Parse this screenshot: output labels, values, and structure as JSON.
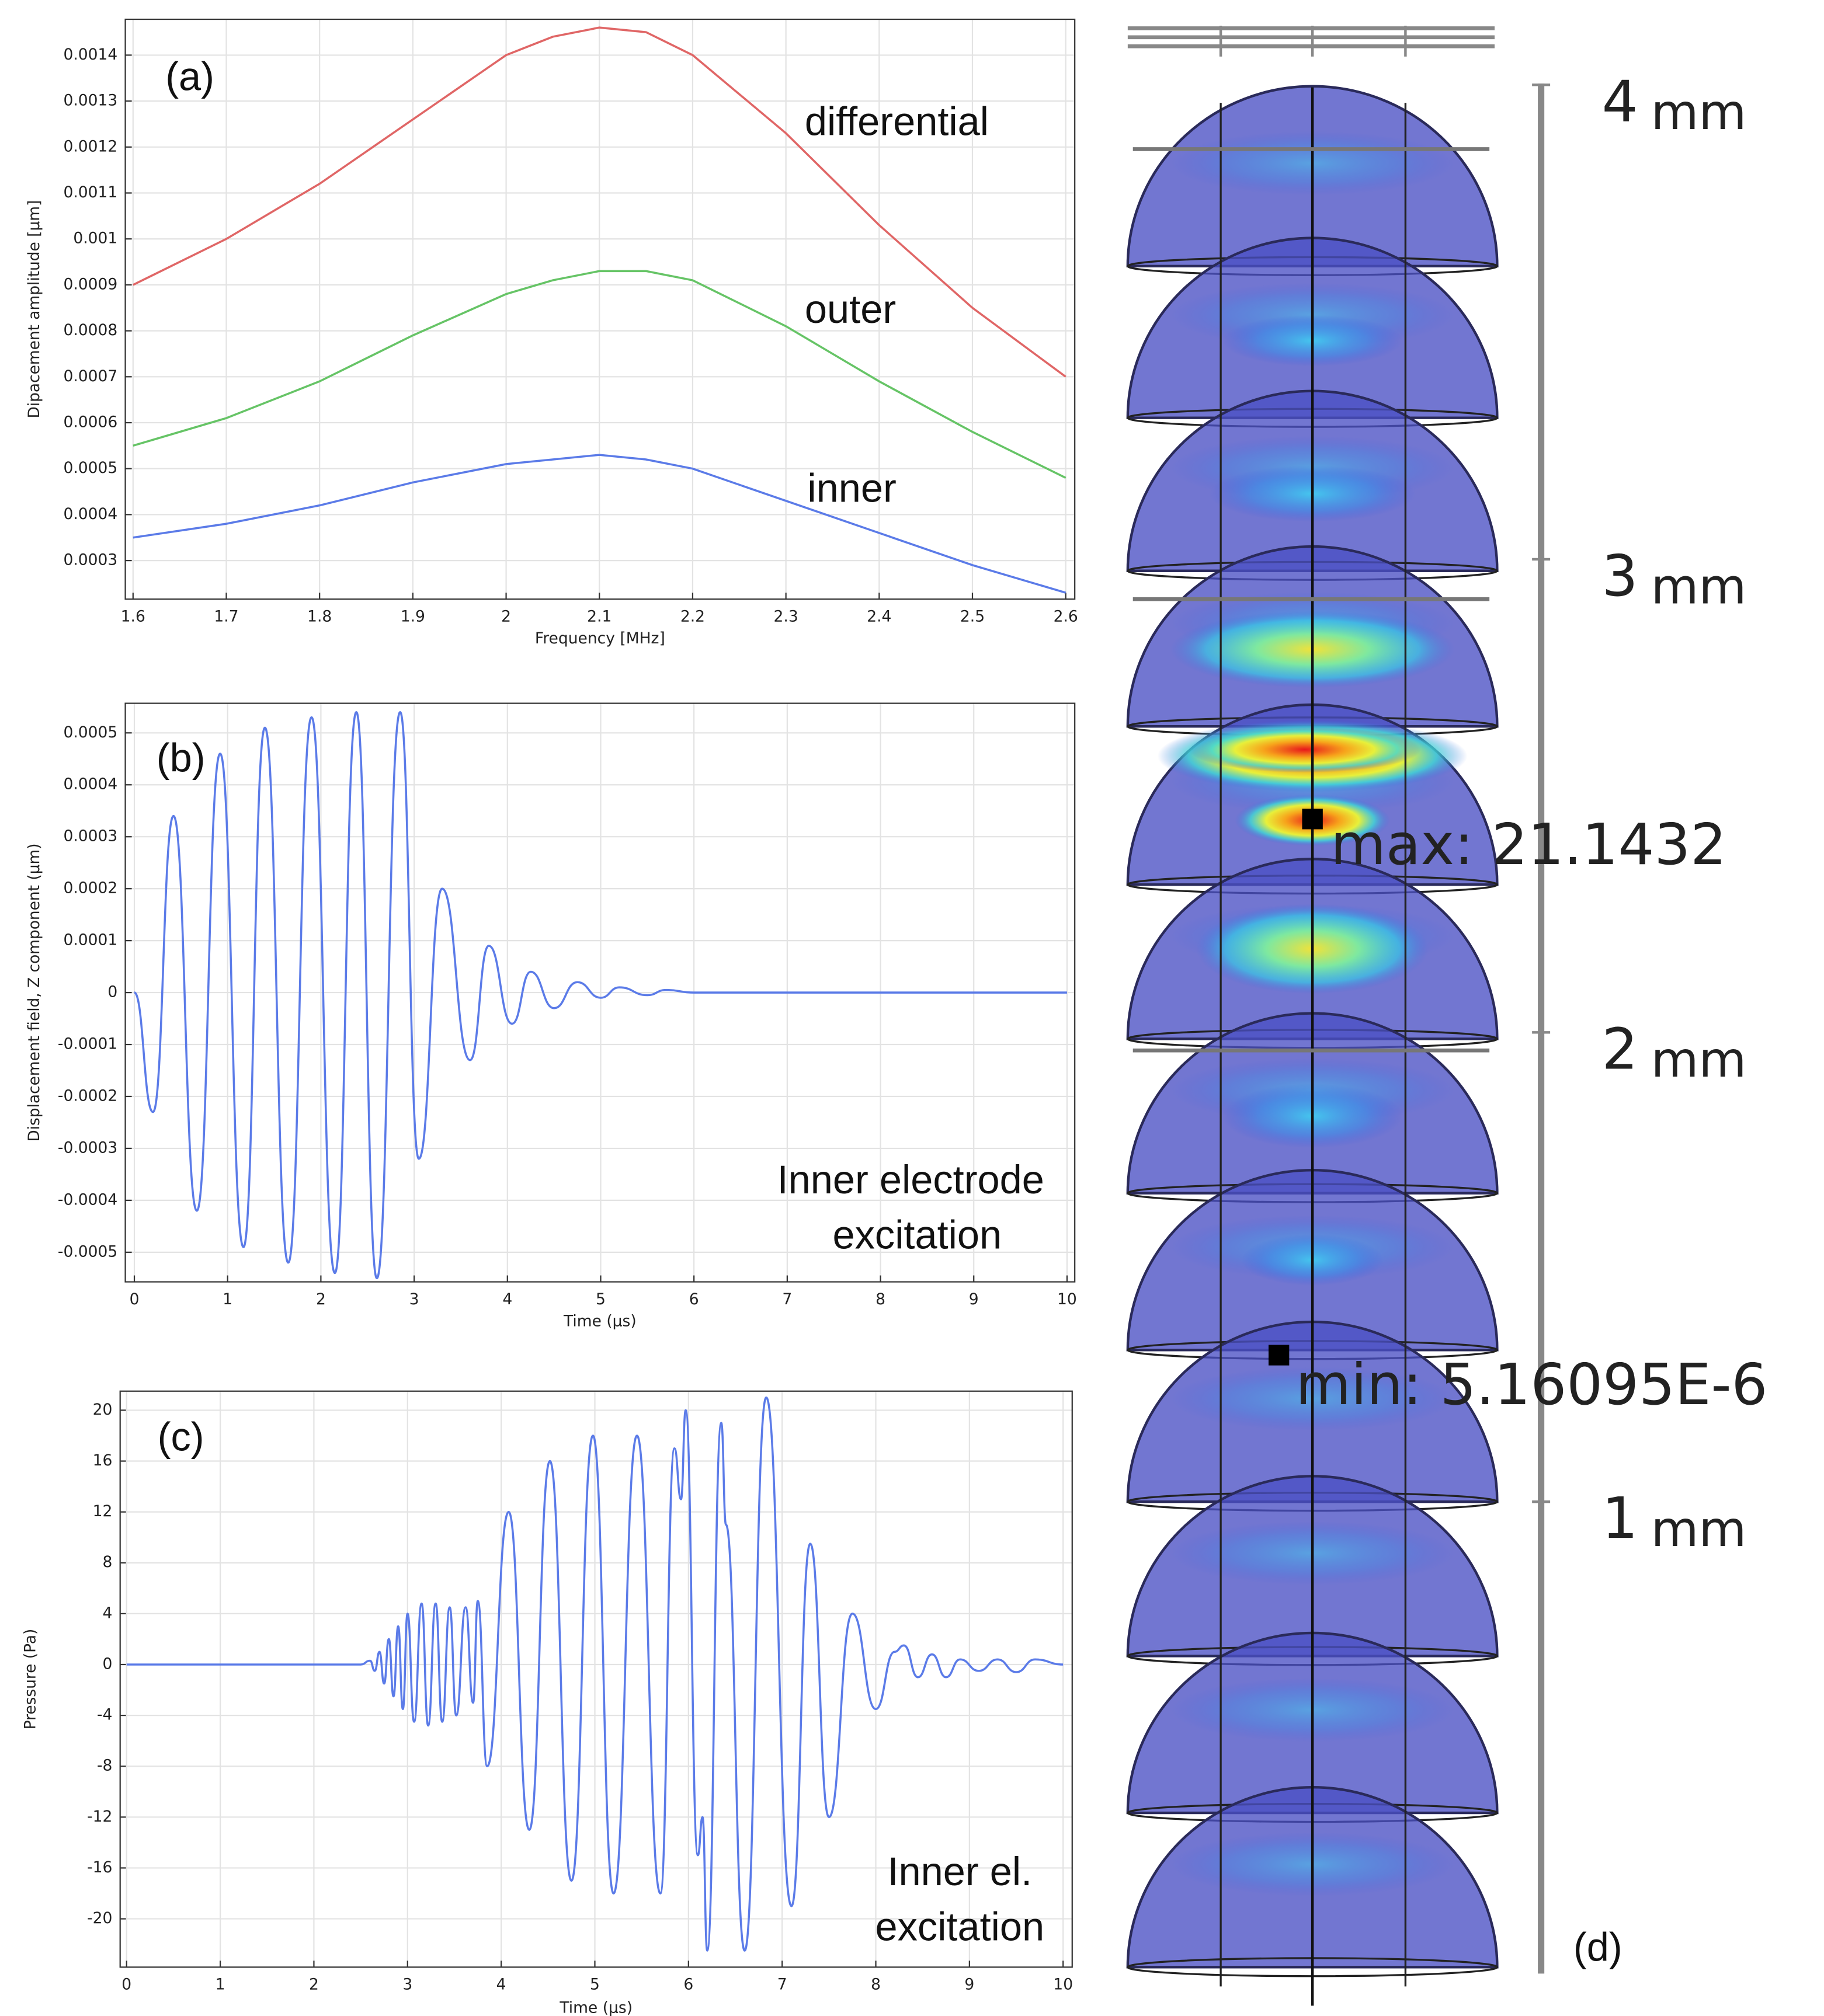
{
  "chart_data": [
    {
      "type": "line",
      "title": "(a)",
      "x_label": "Frequency [MHz]",
      "y_label": "Dipacement amplitude [µm]",
      "x": [
        1.6,
        1.7,
        1.8,
        1.9,
        2.0,
        2.05,
        2.1,
        2.15,
        2.2,
        2.3,
        2.4,
        2.5,
        2.6
      ],
      "series": [
        {
          "name": "differential",
          "color": "#e06666",
          "values": [
            0.0009,
            0.001,
            0.00112,
            0.00126,
            0.0014,
            0.00144,
            0.00146,
            0.00145,
            0.0014,
            0.00123,
            0.00103,
            0.00085,
            0.0007
          ]
        },
        {
          "name": "outer",
          "color": "#66c466",
          "values": [
            0.00055,
            0.00061,
            0.00069,
            0.00079,
            0.00088,
            0.00091,
            0.00093,
            0.00093,
            0.00091,
            0.00081,
            0.00069,
            0.00058,
            0.00048
          ]
        },
        {
          "name": "inner",
          "color": "#5b7be8",
          "values": [
            0.00035,
            0.00038,
            0.00042,
            0.00047,
            0.00051,
            0.00052,
            0.00053,
            0.00052,
            0.0005,
            0.00043,
            0.00036,
            0.00029,
            0.00023
          ]
        }
      ],
      "xlim": [
        1.5917,
        2.6097
      ],
      "xticks": [
        1.6,
        1.7,
        1.8,
        1.9,
        2,
        2.1,
        2.2,
        2.3,
        2.4,
        2.5,
        2.6
      ],
      "ylim": [
        0.000216,
        0.001478
      ],
      "yticks": [
        0.0003,
        0.0004,
        0.0005,
        0.0006,
        0.0007,
        0.0008,
        0.0009,
        0.001,
        0.0011,
        0.0012,
        0.0013,
        0.0014
      ],
      "grid": true
    },
    {
      "type": "line",
      "title": "(b)",
      "annotations": [
        "Inner electrode",
        "excitation"
      ],
      "x_label": "Time (µs)",
      "y_label": "Displacement field, Z component (µm)",
      "color": "#5b7be8",
      "x": [
        0,
        0.2,
        0.42,
        0.67,
        0.92,
        1.17,
        1.4,
        1.65,
        1.9,
        2.15,
        2.38,
        2.6,
        2.85,
        3.05,
        3.3,
        3.6,
        3.8,
        4.05,
        4.25,
        4.5,
        4.75,
        5.0,
        5.2,
        5.5,
        5.7,
        6.0,
        10
      ],
      "values": [
        0,
        -0.00023,
        0.00034,
        -0.00042,
        0.00046,
        -0.00049,
        0.00051,
        -0.00052,
        0.00053,
        -0.00054,
        0.00054,
        -0.00055,
        0.00054,
        -0.00032,
        0.0002,
        -0.00013,
        9e-05,
        -6e-05,
        4e-05,
        -3e-05,
        2e-05,
        -1e-05,
        1e-05,
        -5e-06,
        5e-06,
        0,
        0
      ],
      "xlim": [
        -0.097,
        10.083
      ],
      "xticks": [
        0,
        1,
        2,
        3,
        4,
        5,
        6,
        7,
        8,
        9,
        10
      ],
      "ylim": [
        -0.000557,
        0.000557
      ],
      "yticks": [
        -0.0005,
        -0.0004,
        -0.0003,
        -0.0002,
        -0.0001,
        0,
        0.0001,
        0.0002,
        0.0003,
        0.0004,
        0.0005
      ],
      "grid": true
    },
    {
      "type": "line",
      "title": "(c)",
      "annotations": [
        "Inner el.",
        "excitation"
      ],
      "x_label": "Time (µs)",
      "y_label": "Pressure (Pa)",
      "color": "#5b7be8",
      "x": [
        0,
        2.5,
        2.6,
        2.65,
        2.7,
        2.75,
        2.8,
        2.85,
        2.9,
        2.95,
        3.0,
        3.07,
        3.15,
        3.22,
        3.3,
        3.37,
        3.45,
        3.52,
        3.62,
        3.7,
        3.75,
        3.85,
        4.08,
        4.3,
        4.52,
        4.75,
        4.98,
        5.2,
        5.45,
        5.7,
        5.85,
        5.92,
        5.97,
        6.1,
        6.15,
        6.2,
        6.35,
        6.4,
        6.6,
        6.83,
        7.1,
        7.3,
        7.5,
        7.75,
        8.0,
        8.2,
        8.3,
        8.45,
        8.6,
        8.75,
        8.9,
        9.1,
        9.3,
        9.5,
        9.7,
        10
      ],
      "values": [
        0,
        0,
        0.3,
        -0.5,
        1,
        -1.5,
        2,
        -2.5,
        3,
        -3.5,
        4,
        -4.5,
        4.8,
        -4.8,
        4.8,
        -4.5,
        4.5,
        -4,
        4.5,
        -3,
        5,
        -8,
        12,
        -13,
        16,
        -17,
        18,
        -18,
        18,
        -18,
        17,
        13,
        20,
        -15,
        -12,
        -22.5,
        19,
        11,
        -22.5,
        21,
        -19,
        9.5,
        -12,
        4,
        -3.5,
        1,
        1.5,
        -1,
        0.8,
        -1,
        0.4,
        -0.5,
        0.4,
        -0.6,
        0.4,
        0
      ],
      "xlim": [
        -0.069,
        10.097
      ],
      "xticks": [
        0,
        1,
        2,
        3,
        4,
        5,
        6,
        7,
        8,
        9,
        10
      ],
      "ylim": [
        -23.8,
        21.5
      ],
      "yticks": [
        -20,
        -16,
        -12,
        -8,
        -4,
        0,
        4,
        8,
        12,
        16,
        20
      ],
      "grid": true
    }
  ],
  "panel_d": {
    "scale_labels": [
      {
        "number": "4",
        "unit": "mm"
      },
      {
        "number": "3",
        "unit": "mm"
      },
      {
        "number": "2",
        "unit": "mm"
      },
      {
        "number": "1",
        "unit": "mm"
      }
    ],
    "max_label": "max: 21.1432",
    "min_label": "min: 5.16095E-6",
    "panel_label": "(d)"
  }
}
